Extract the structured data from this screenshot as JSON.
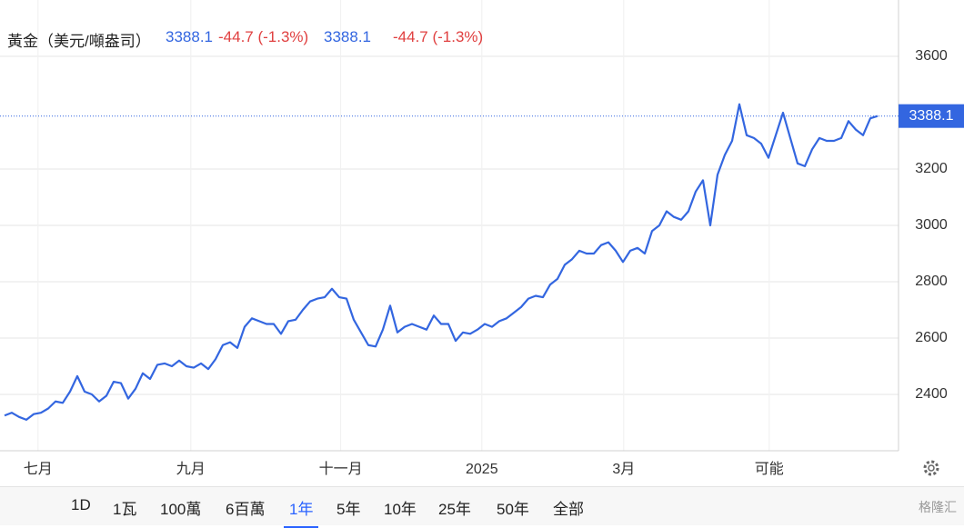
{
  "header": {
    "title": "黃金（美元/噸盎司）",
    "quote_a": "3388.1",
    "change_a": "-44.7 (-1.3%)",
    "quote_b": "3388.1",
    "change_b": "-44.7 (-1.3%)"
  },
  "chart_data": {
    "type": "line",
    "x": [
      0,
      1,
      2,
      3,
      4,
      5,
      6,
      7,
      8,
      9,
      10,
      11,
      12,
      13,
      14,
      15,
      16,
      17,
      18,
      19,
      20,
      21,
      22,
      23,
      24,
      25,
      26,
      27,
      28,
      29,
      30,
      31,
      32,
      33,
      34,
      35,
      36,
      37,
      38,
      39,
      40,
      41,
      42,
      43,
      44,
      45,
      46,
      47,
      48,
      49,
      50,
      51,
      52,
      53,
      54,
      55,
      56,
      57,
      58,
      59,
      60,
      61,
      62,
      63,
      64,
      65,
      66,
      67,
      68,
      69,
      70,
      71,
      72,
      73,
      74,
      75,
      76,
      77,
      78,
      79,
      80,
      81,
      82,
      83,
      84,
      85,
      86,
      87,
      88,
      89,
      90,
      91,
      92,
      93,
      94,
      95,
      96,
      97,
      98,
      99,
      100,
      101,
      102,
      103,
      104,
      105,
      106,
      107,
      108,
      109,
      110,
      111,
      112,
      113,
      114,
      115,
      116,
      117,
      118,
      119,
      120
    ],
    "series": [
      {
        "name": "黃金",
        "color": "#3366e0",
        "values": [
          2325,
          2335,
          2320,
          2310,
          2330,
          2335,
          2350,
          2375,
          2370,
          2410,
          2465,
          2410,
          2400,
          2375,
          2395,
          2445,
          2440,
          2385,
          2420,
          2475,
          2455,
          2505,
          2510,
          2500,
          2520,
          2500,
          2495,
          2510,
          2490,
          2525,
          2575,
          2585,
          2565,
          2640,
          2670,
          2660,
          2650,
          2650,
          2615,
          2660,
          2665,
          2700,
          2730,
          2740,
          2745,
          2775,
          2745,
          2740,
          2665,
          2620,
          2575,
          2570,
          2630,
          2715,
          2620,
          2640,
          2650,
          2640,
          2630,
          2680,
          2650,
          2650,
          2590,
          2620,
          2615,
          2630,
          2650,
          2640,
          2660,
          2670,
          2690,
          2710,
          2740,
          2750,
          2745,
          2790,
          2810,
          2860,
          2880,
          2910,
          2900,
          2900,
          2930,
          2940,
          2910,
          2870,
          2910,
          2920,
          2900,
          2980,
          3000,
          3050,
          3030,
          3020,
          3050,
          3120,
          3160,
          3000,
          3180,
          3250,
          3300,
          3430,
          3320,
          3310,
          3290,
          3240,
          3320,
          3400,
          3310,
          3220,
          3210,
          3270,
          3310,
          3300,
          3300,
          3310,
          3370,
          3340,
          3320,
          3380,
          3388.1
        ]
      }
    ],
    "xlim": [
      -0.625,
      122.875
    ],
    "xticks": [
      {
        "value": 4.6,
        "label": "七月"
      },
      {
        "value": 25.6,
        "label": "九月"
      },
      {
        "value": 46.2,
        "label": "十一月"
      },
      {
        "value": 65.6,
        "label": "2025"
      },
      {
        "value": 85.1,
        "label": "3月"
      },
      {
        "value": 105.1,
        "label": "可能"
      }
    ],
    "ylim": [
      2200,
      3800
    ],
    "yticks": [
      2400,
      2600,
      2800,
      3000,
      3200,
      3600
    ],
    "price_line": 3388.1,
    "grid": true
  },
  "ranges": [
    "1D",
    "1瓦",
    "100萬",
    "6百萬",
    "1年",
    "5年",
    "10年",
    "25年",
    "50年",
    "全部"
  ],
  "selected_range": 4,
  "watermark": "格隆汇"
}
